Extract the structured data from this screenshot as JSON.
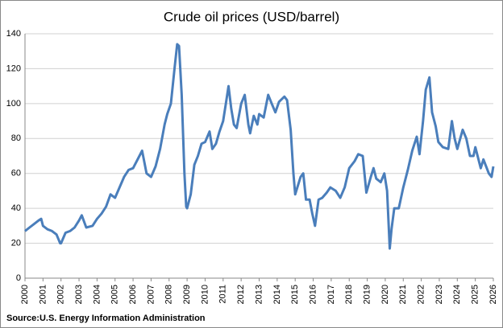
{
  "chart_data": {
    "type": "line",
    "title": "Crude oil prices (USD/barrel)",
    "source": "Source:U.S. Energy Information Administration",
    "x": [
      2000.0,
      2000.25,
      2000.5,
      2000.75,
      2000.9,
      2001.0,
      2001.25,
      2001.5,
      2001.75,
      2001.95,
      2002.0,
      2002.25,
      2002.5,
      2002.75,
      2003.0,
      2003.15,
      2003.4,
      2003.75,
      2004.0,
      2004.25,
      2004.5,
      2004.75,
      2005.0,
      2005.25,
      2005.5,
      2005.75,
      2006.0,
      2006.5,
      2006.75,
      2007.0,
      2007.25,
      2007.5,
      2007.75,
      2007.9,
      2008.1,
      2008.3,
      2008.45,
      2008.55,
      2008.7,
      2008.85,
      2008.95,
      2009.0,
      2009.2,
      2009.4,
      2009.6,
      2009.8,
      2010.0,
      2010.25,
      2010.4,
      2010.6,
      2010.8,
      2011.0,
      2011.15,
      2011.3,
      2011.45,
      2011.6,
      2011.75,
      2012.0,
      2012.2,
      2012.4,
      2012.5,
      2012.7,
      2012.9,
      2013.0,
      2013.25,
      2013.5,
      2013.7,
      2013.9,
      2014.1,
      2014.4,
      2014.55,
      2014.75,
      2014.9,
      2015.0,
      2015.3,
      2015.45,
      2015.6,
      2015.8,
      2015.95,
      2016.1,
      2016.3,
      2016.5,
      2016.75,
      2016.95,
      2017.25,
      2017.5,
      2017.75,
      2018.0,
      2018.3,
      2018.5,
      2018.75,
      2018.95,
      2019.2,
      2019.35,
      2019.5,
      2019.75,
      2019.95,
      2020.1,
      2020.25,
      2020.35,
      2020.5,
      2020.75,
      2021.0,
      2021.25,
      2021.5,
      2021.75,
      2021.9,
      2022.1,
      2022.25,
      2022.45,
      2022.6,
      2022.8,
      2022.95,
      2023.2,
      2023.5,
      2023.7,
      2023.85,
      2024.0,
      2024.3,
      2024.5,
      2024.7,
      2024.9,
      2025.0,
      2025.3,
      2025.45,
      2025.75,
      2025.9,
      2026.0
    ],
    "series": [
      {
        "color": "#4a7ebb",
        "values": [
          27,
          29,
          31,
          33,
          34,
          30,
          28,
          27,
          25,
          20,
          20,
          26,
          27,
          29,
          33,
          36,
          29,
          30,
          34,
          37,
          41,
          48,
          46,
          52,
          58,
          62,
          63,
          73,
          60,
          58,
          64,
          74,
          88,
          94,
          100,
          120,
          134,
          133,
          105,
          60,
          41,
          40,
          48,
          65,
          70,
          77,
          78,
          84,
          74,
          77,
          84,
          90,
          100,
          110,
          97,
          88,
          86,
          100,
          105,
          88,
          83,
          93,
          88,
          94,
          92,
          105,
          100,
          95,
          101,
          104,
          102,
          85,
          60,
          48,
          58,
          60,
          45,
          45,
          37,
          30,
          45,
          46,
          49,
          52,
          50,
          46,
          52,
          63,
          67,
          71,
          70,
          49,
          58,
          63,
          57,
          55,
          60,
          50,
          17,
          28,
          40,
          40,
          52,
          62,
          73,
          81,
          71,
          90,
          108,
          115,
          95,
          87,
          78,
          75,
          74,
          90,
          80,
          74,
          85,
          80,
          70,
          70,
          75,
          63,
          68,
          60,
          58,
          64
        ]
      }
    ],
    "xlim": [
      2000,
      2026
    ],
    "xticks": [
      2000,
      2001,
      2002,
      2003,
      2004,
      2005,
      2006,
      2007,
      2008,
      2009,
      2010,
      2011,
      2012,
      2013,
      2014,
      2015,
      2016,
      2017,
      2018,
      2019,
      2020,
      2021,
      2022,
      2023,
      2024,
      2025,
      2026
    ],
    "ylim": [
      0,
      140
    ],
    "yticks": [
      0,
      20,
      40,
      60,
      80,
      100,
      120,
      140
    ],
    "grid": true
  }
}
